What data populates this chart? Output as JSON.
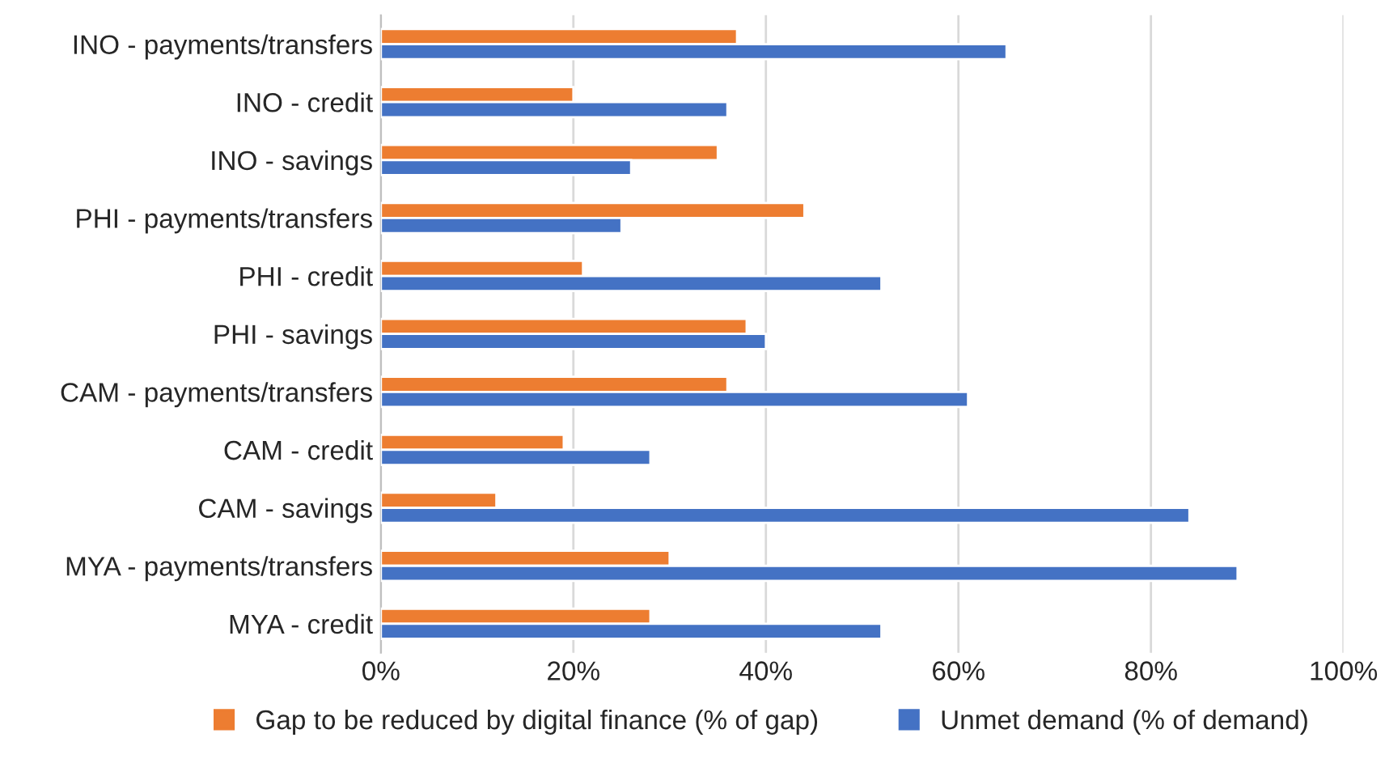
{
  "chart_data": {
    "type": "bar",
    "orientation": "horizontal",
    "categories": [
      "INO - payments/transfers",
      "INO - credit",
      "INO - savings",
      "PHI - payments/transfers",
      "PHI - credit",
      "PHI - savings",
      "CAM - payments/transfers",
      "CAM - credit",
      "CAM - savings",
      "MYA - payments/transfers",
      "MYA - credit"
    ],
    "series": [
      {
        "name": "Gap to be reduced by digital finance (% of gap)",
        "color": "#ed7d31",
        "values": [
          37,
          20,
          35,
          44,
          21,
          38,
          36,
          19,
          12,
          30,
          28
        ]
      },
      {
        "name": "Unmet demand (% of demand)",
        "color": "#4472c4",
        "values": [
          65,
          36,
          26,
          25,
          52,
          40,
          61,
          28,
          84,
          89,
          52
        ]
      }
    ],
    "xlim": [
      0,
      100
    ],
    "xticks": [
      {
        "value": 0,
        "label": "0%"
      },
      {
        "value": 20,
        "label": "20%"
      },
      {
        "value": 40,
        "label": "40%"
      },
      {
        "value": 60,
        "label": "60%"
      },
      {
        "value": 80,
        "label": "80%"
      },
      {
        "value": 100,
        "label": "100%"
      }
    ],
    "grid": "x",
    "legend": "bottom"
  }
}
